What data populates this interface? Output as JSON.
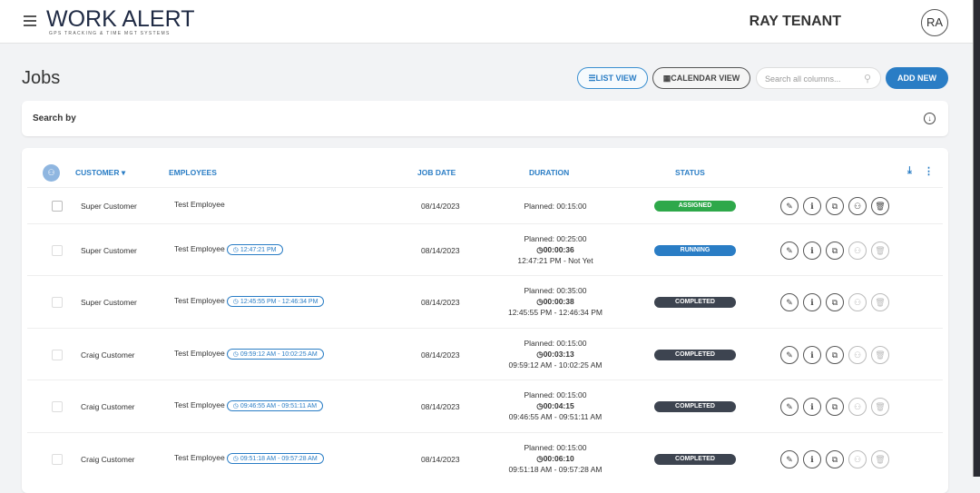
{
  "header": {
    "brand": "WORK ALERT",
    "tagline": "GPS TRACKING & TIME MGT SYSTEMS",
    "user_name": "RAY TENANT",
    "avatar_initials": "RA"
  },
  "page": {
    "title": "Jobs",
    "list_view": "LIST VIEW",
    "calendar_view": "CALENDAR VIEW",
    "search_placeholder": "Search all columns...",
    "add_new": "ADD NEW",
    "search_by": "Search by"
  },
  "table": {
    "columns": {
      "customer": "CUSTOMER",
      "employees": "EMPLOYEES",
      "job_date": "JOB DATE",
      "duration": "DURATION",
      "status": "STATUS"
    },
    "status_colors": {
      "ASSIGNED": "#2ea84a",
      "RUNNING": "#2a7dc5",
      "COMPLETED": "#3d4450"
    },
    "rows": [
      {
        "customer": "Super Customer",
        "employee": "Test Employee",
        "time_pill": "",
        "date": "08/14/2023",
        "planned": "Planned: 00:15:00",
        "elapsed": "",
        "range": "",
        "status": "ASSIGNED",
        "actions_enabled": true
      },
      {
        "customer": "Super Customer",
        "employee": "Test Employee",
        "time_pill": "12:47:21 PM",
        "date": "08/14/2023",
        "planned": "Planned: 00:25:00",
        "elapsed": "00:00:36",
        "range": "12:47:21 PM - Not Yet",
        "status": "RUNNING",
        "actions_enabled": false
      },
      {
        "customer": "Super Customer",
        "employee": "Test Employee",
        "time_pill": "12:45:55 PM - 12:46:34 PM",
        "date": "08/14/2023",
        "planned": "Planned: 00:35:00",
        "elapsed": "00:00:38",
        "range": "12:45:55 PM - 12:46:34 PM",
        "status": "COMPLETED",
        "actions_enabled": false
      },
      {
        "customer": "Craig Customer",
        "employee": "Test Employee",
        "time_pill": "09:59:12 AM - 10:02:25 AM",
        "date": "08/14/2023",
        "planned": "Planned: 00:15:00",
        "elapsed": "00:03:13",
        "range": "09:59:12 AM - 10:02:25 AM",
        "status": "COMPLETED",
        "actions_enabled": false
      },
      {
        "customer": "Craig Customer",
        "employee": "Test Employee",
        "time_pill": "09:46:55 AM - 09:51:11 AM",
        "date": "08/14/2023",
        "planned": "Planned: 00:15:00",
        "elapsed": "00:04:15",
        "range": "09:46:55 AM - 09:51:11 AM",
        "status": "COMPLETED",
        "actions_enabled": false
      },
      {
        "customer": "Craig Customer",
        "employee": "Test Employee",
        "time_pill": "09:51:18 AM - 09:57:28 AM",
        "date": "08/14/2023",
        "planned": "Planned: 00:15:00",
        "elapsed": "00:06:10",
        "range": "09:51:18 AM - 09:57:28 AM",
        "status": "COMPLETED",
        "actions_enabled": false
      }
    ]
  }
}
